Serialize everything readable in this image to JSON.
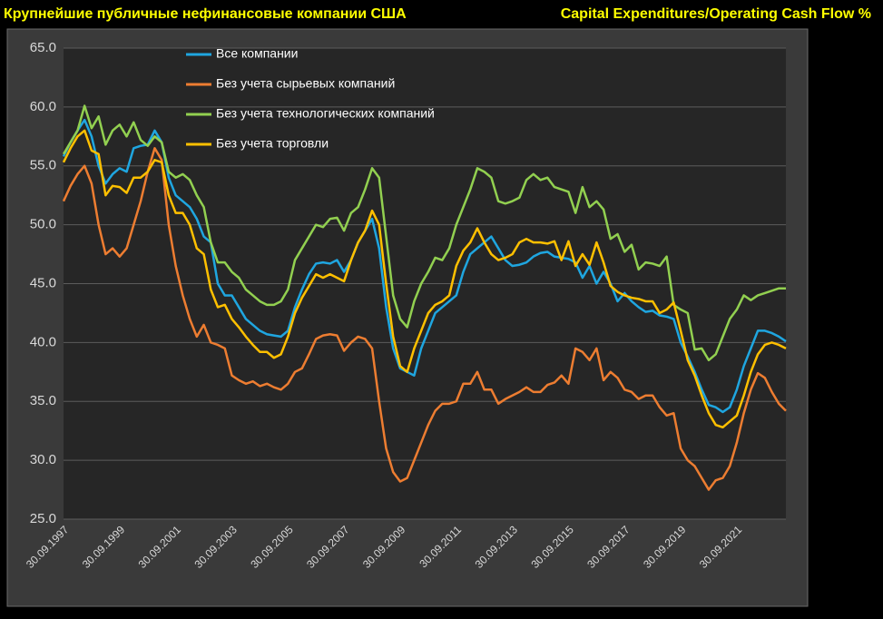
{
  "chart_data": {
    "type": "line",
    "title": "Крупнейшие публичные нефинансовые компании США",
    "subtitle": "Capital Expenditures/Operating Cash Flow %",
    "categories": [
      "30.09.1997",
      null,
      null,
      null,
      null,
      null,
      null,
      null,
      "30.09.1999",
      null,
      null,
      null,
      null,
      null,
      null,
      null,
      "30.09.2001",
      null,
      null,
      null,
      null,
      null,
      null,
      null,
      "30.09.2003",
      null,
      null,
      null,
      null,
      null,
      null,
      null,
      "30.09.2005",
      null,
      null,
      null,
      null,
      null,
      null,
      null,
      "30.09.2007",
      null,
      null,
      null,
      null,
      null,
      null,
      null,
      "30.09.2009",
      null,
      null,
      null,
      null,
      null,
      null,
      null,
      "30.09.2011",
      null,
      null,
      null,
      null,
      null,
      null,
      null,
      "30.09.2013",
      null,
      null,
      null,
      null,
      null,
      null,
      null,
      "30.09.2015",
      null,
      null,
      null,
      null,
      null,
      null,
      null,
      "30.09.2017",
      null,
      null,
      null,
      null,
      null,
      null,
      null,
      "30.09.2019",
      null,
      null,
      null,
      null,
      null,
      null,
      null,
      "30.09.2021",
      null,
      null,
      null,
      null,
      null,
      null,
      null
    ],
    "series": [
      {
        "name": "Все компании",
        "color": "#1fa6e0",
        "values": [
          55.8,
          57,
          58,
          58.9,
          57.5,
          55,
          53.5,
          54.3,
          54.8,
          54.5,
          56.5,
          56.7,
          56.8,
          58,
          57,
          54,
          52.5,
          52,
          51.5,
          50.5,
          49,
          48.5,
          45,
          44,
          44,
          43,
          42,
          41.5,
          41,
          40.7,
          40.6,
          40.5,
          41,
          43,
          44.5,
          45.8,
          46.7,
          46.8,
          46.7,
          47,
          46,
          47,
          48.5,
          49.5,
          50.5,
          48,
          43,
          39.5,
          37.8,
          37.5,
          37.2,
          39.5,
          41,
          42.5,
          43,
          43.5,
          44,
          46,
          47.5,
          48,
          48.5,
          49,
          48,
          47,
          46.5,
          46.6,
          46.8,
          47.3,
          47.6,
          47.7,
          47.3,
          47.2,
          47.1,
          46.8,
          45.5,
          46.5,
          45,
          46,
          45,
          43.5,
          44.2,
          43.5,
          43,
          42.6,
          42.7,
          42.3,
          42.2,
          42,
          40,
          38.8,
          37.5,
          36,
          34.7,
          34.5,
          34.1,
          34.5,
          36,
          38,
          39.5,
          41,
          41,
          40.8,
          40.5,
          40.1
        ]
      },
      {
        "name": "Без учета сырьевых компаний",
        "color": "#ed7d31",
        "values": [
          52,
          53.3,
          54.3,
          55,
          53.5,
          50,
          47.5,
          48,
          47.3,
          48,
          50,
          52,
          54.5,
          56.5,
          55.5,
          50,
          46.5,
          44,
          42,
          40.5,
          41.5,
          40,
          39.8,
          39.5,
          37.2,
          36.8,
          36.5,
          36.7,
          36.3,
          36.5,
          36.2,
          36,
          36.5,
          37.5,
          37.8,
          39,
          40.3,
          40.6,
          40.7,
          40.6,
          39.3,
          40,
          40.5,
          40.3,
          39.5,
          35,
          31,
          29,
          28.2,
          28.5,
          30,
          31.5,
          33,
          34.2,
          34.8,
          34.8,
          35,
          36.5,
          36.5,
          37.5,
          36,
          36,
          34.8,
          35.2,
          35.5,
          35.8,
          36.2,
          35.8,
          35.8,
          36.4,
          36.6,
          37.2,
          36.5,
          39.5,
          39.2,
          38.5,
          39.5,
          36.8,
          37.5,
          37,
          36,
          35.8,
          35.2,
          35.5,
          35.5,
          34.5,
          33.8,
          34,
          31,
          30,
          29.5,
          28.5,
          27.5,
          28.3,
          28.5,
          29.5,
          31.5,
          34,
          36,
          37.4,
          37,
          35.8,
          34.8,
          34.2
        ]
      },
      {
        "name": "Без учета технологических компаний",
        "color": "#92d050",
        "values": [
          56,
          57,
          58,
          60.1,
          58.2,
          59.2,
          56.8,
          58,
          58.5,
          57.5,
          58.7,
          57.2,
          56.7,
          57.5,
          57,
          54.5,
          54,
          54.3,
          53.8,
          52.5,
          51.5,
          48.5,
          46.8,
          46.8,
          46,
          45.5,
          44.5,
          44,
          43.5,
          43.2,
          43.2,
          43.5,
          44.5,
          47,
          48,
          49,
          50,
          49.8,
          50.5,
          50.6,
          49.5,
          51,
          51.5,
          53,
          54.8,
          54,
          49,
          44,
          42,
          41.3,
          43.5,
          45,
          46,
          47.2,
          47,
          48,
          50,
          51.5,
          53,
          54.8,
          54.5,
          54,
          52,
          51.8,
          52,
          52.3,
          53.8,
          54.3,
          53.8,
          54,
          53.2,
          53,
          52.8,
          51,
          53.2,
          51.5,
          52,
          51.3,
          48.8,
          49.2,
          47.7,
          48.3,
          46.2,
          46.8,
          46.7,
          46.5,
          47.3,
          43.2,
          42.8,
          42.5,
          39.4,
          39.5,
          38.5,
          39,
          40.5,
          42,
          42.8,
          44,
          43.6,
          44,
          44.2,
          44.4,
          44.6,
          44.6
        ]
      },
      {
        "name": "Без учета торговли",
        "color": "#ffc000",
        "values": [
          55.3,
          56.5,
          57.5,
          58,
          56.3,
          56,
          52.5,
          53.3,
          53.2,
          52.7,
          54,
          54,
          54.5,
          55.5,
          55.3,
          52.5,
          51,
          51,
          50,
          48,
          47.5,
          44.5,
          43,
          43.2,
          42,
          41.3,
          40.5,
          39.8,
          39.2,
          39.2,
          38.7,
          39,
          40.5,
          42.5,
          43.8,
          44.8,
          45.8,
          45.5,
          45.8,
          45.5,
          45.2,
          47,
          48.5,
          49.5,
          51.2,
          50,
          45,
          40.5,
          38,
          37.5,
          39.5,
          41,
          42.5,
          43.2,
          43.5,
          44,
          46.5,
          47.8,
          48.5,
          49.7,
          48.5,
          47.5,
          47,
          47.2,
          47.5,
          48.5,
          48.8,
          48.5,
          48.5,
          48.4,
          48.6,
          47,
          48.6,
          46.5,
          47.5,
          46.6,
          48.5,
          46.8,
          44.8,
          44.3,
          44,
          43.8,
          43.7,
          43.5,
          43.5,
          42.5,
          42.8,
          43.4,
          41,
          38.5,
          37.2,
          35.5,
          34,
          33,
          32.8,
          33.3,
          33.8,
          35.5,
          37.5,
          39,
          39.8,
          40,
          39.8,
          39.5
        ]
      }
    ],
    "ylim": [
      25,
      65
    ],
    "yticks": [
      {
        "value": 25,
        "label": "25.0"
      },
      {
        "value": 30,
        "label": "30.0"
      },
      {
        "value": 35,
        "label": "35.0"
      },
      {
        "value": 40,
        "label": "40.0"
      },
      {
        "value": 45,
        "label": "45.0"
      },
      {
        "value": 50,
        "label": "50.0"
      },
      {
        "value": 55,
        "label": "55.0"
      },
      {
        "value": 60,
        "label": "60.0"
      },
      {
        "value": 65,
        "label": "65.0"
      }
    ],
    "grid": true,
    "legend": "top"
  }
}
